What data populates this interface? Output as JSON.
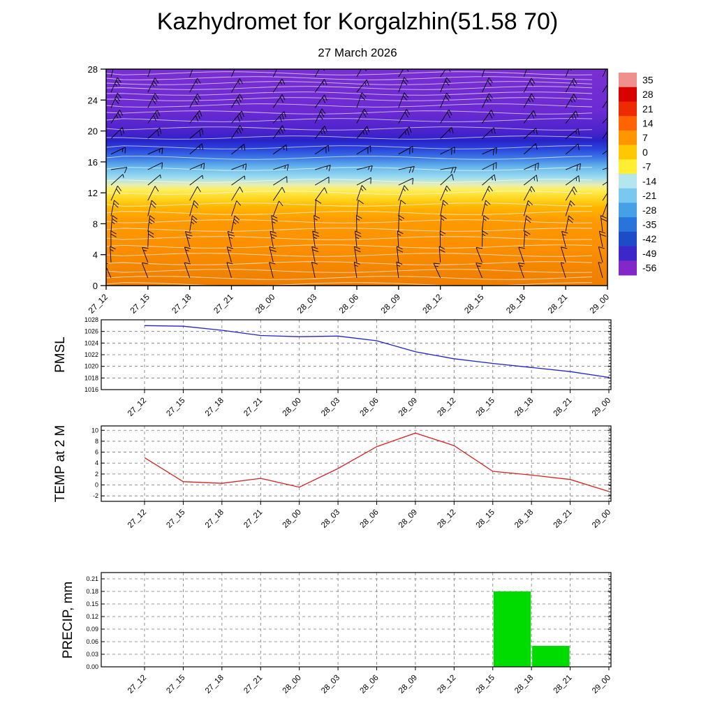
{
  "title": "Kazhydromet for Korgalzhin(51.58 70)",
  "subtitle": "27 March 2026",
  "time_labels": [
    "27_12",
    "27_15",
    "27_18",
    "27_21",
    "28_00",
    "28_03",
    "28_06",
    "28_09",
    "28_12",
    "28_15",
    "28_18",
    "28_21",
    "29_00"
  ],
  "chart_data": [
    {
      "type": "heatmap",
      "name": "temperature-height-cross-section",
      "x": [
        "27_12",
        "27_15",
        "27_18",
        "27_21",
        "28_00",
        "28_03",
        "28_06",
        "28_09",
        "28_12",
        "28_15",
        "28_18",
        "28_21",
        "29_00"
      ],
      "ylim": [
        0,
        28
      ],
      "yticks": [
        0,
        4,
        8,
        12,
        16,
        20,
        24,
        28
      ],
      "colorbar_values": [
        35,
        28,
        21,
        14,
        7,
        0,
        -7,
        -14,
        -21,
        -28,
        -35,
        -42,
        -49,
        -56
      ],
      "colorbar_colors": [
        "#f0908c",
        "#d80000",
        "#ee2a00",
        "#ff6400",
        "#ff9600",
        "#ffc800",
        "#ffee32",
        "#b4e6f0",
        "#78c8f0",
        "#46a0e6",
        "#2874dc",
        "#1e4cc8",
        "#3c28c8",
        "#8228c8"
      ],
      "gradient_stops": [
        [
          0,
          "#7a30d2"
        ],
        [
          0.2,
          "#6a2ad2"
        ],
        [
          0.29,
          "#4a22cc"
        ],
        [
          0.33,
          "#2822c8"
        ],
        [
          0.37,
          "#2a46dc"
        ],
        [
          0.41,
          "#3c78e6"
        ],
        [
          0.45,
          "#64b4ec"
        ],
        [
          0.5,
          "#9cdcf0"
        ],
        [
          0.535,
          "#e8eeb4"
        ],
        [
          0.56,
          "#ffee55"
        ],
        [
          0.6,
          "#ffd41e"
        ],
        [
          0.64,
          "#ffb400"
        ],
        [
          0.7,
          "#ff9a00"
        ],
        [
          0.85,
          "#fa8c00"
        ],
        [
          1,
          "#ee7e00"
        ]
      ],
      "contour_color": "#ffffff",
      "contour_y": [
        6,
        13,
        20,
        27,
        35,
        43,
        52,
        62,
        73,
        85,
        98,
        112,
        127,
        143,
        160,
        177,
        194,
        206,
        218,
        230,
        242,
        254,
        266,
        278,
        289,
        299,
        308
      ],
      "wind_rows": [
        {
          "level": 27,
          "angle": 25,
          "speed": 20
        },
        {
          "level": 25,
          "angle": 30,
          "speed": 20
        },
        {
          "level": 23,
          "angle": 27,
          "speed": 25
        },
        {
          "level": 21,
          "angle": 33,
          "speed": 25
        },
        {
          "level": 19,
          "angle": 42,
          "speed": 20
        },
        {
          "level": 17,
          "angle": 58,
          "speed": 15
        },
        {
          "level": 15,
          "angle": 72,
          "speed": 15
        },
        {
          "level": 13,
          "angle": 55,
          "speed": 10
        },
        {
          "level": 11,
          "angle": 28,
          "speed": 15
        },
        {
          "level": 9,
          "angle": 12,
          "speed": 15
        },
        {
          "level": 7,
          "angle": 2,
          "speed": 20
        },
        {
          "level": 5,
          "angle": -6,
          "speed": 20
        },
        {
          "level": 3,
          "angle": -12,
          "speed": 15
        },
        {
          "level": 1,
          "angle": -16,
          "speed": 10
        }
      ]
    },
    {
      "type": "line",
      "name": "pmsl",
      "ylabel": "PMSL",
      "color": "#2222cc",
      "ylim": [
        1016,
        1028
      ],
      "yticks": [
        1016,
        1018,
        1020,
        1022,
        1024,
        1026,
        1028
      ],
      "x": [
        "27_12",
        "27_15",
        "27_18",
        "27_21",
        "28_00",
        "28_03",
        "28_06",
        "28_09",
        "28_12",
        "28_15",
        "28_18",
        "28_21",
        "29_00"
      ],
      "values": [
        1027,
        1026.9,
        1026.2,
        1025.3,
        1025.1,
        1025.2,
        1024.4,
        1022.5,
        1021.3,
        1020.5,
        1019.8,
        1019.1,
        1018.1
      ]
    },
    {
      "type": "line",
      "name": "temp-at-2m",
      "ylabel": "TEMP at 2 M",
      "color": "#d82222",
      "ylim": [
        -3,
        10.8
      ],
      "yticks": [
        -2,
        0,
        2,
        4,
        6,
        8,
        10
      ],
      "x": [
        "27_12",
        "27_15",
        "27_18",
        "27_21",
        "28_00",
        "28_03",
        "28_06",
        "28_09",
        "28_12",
        "28_15",
        "28_18",
        "28_21",
        "29_00"
      ],
      "values": [
        5,
        0.6,
        0.3,
        1.2,
        -0.4,
        3,
        7,
        9.5,
        7.2,
        2.5,
        1.8,
        1,
        -1.2
      ]
    },
    {
      "type": "bar",
      "name": "precip",
      "ylabel": "PRECIP, mm",
      "color": "#00dc00",
      "ylim": [
        0,
        0.225
      ],
      "yticks": [
        0,
        0.03,
        0.06,
        0.09,
        0.12,
        0.15,
        0.18,
        0.21
      ],
      "ytick_labels": [
        "0.00",
        "0.03",
        "0.06",
        "0.09",
        "0.12",
        "0.15",
        "0.18",
        "0.21"
      ],
      "x": [
        "27_12",
        "27_15",
        "27_18",
        "27_21",
        "28_00",
        "28_03",
        "28_06",
        "28_09",
        "28_12",
        "28_15",
        "28_18",
        "28_21",
        "29_00"
      ],
      "interval_values": [
        0,
        0,
        0,
        0,
        0,
        0,
        0,
        0,
        0,
        0,
        0.18,
        0.05,
        0
      ],
      "bars": [
        {
          "start_index": 9,
          "end_index": 10,
          "value": 0.18
        },
        {
          "start_index": 10,
          "end_index": 11,
          "value": 0.05
        }
      ]
    }
  ],
  "grid_color": "#777777"
}
